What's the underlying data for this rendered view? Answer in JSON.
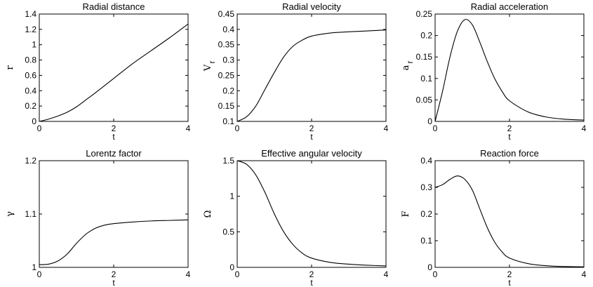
{
  "chart_data": [
    {
      "type": "line",
      "title": "Radial distance",
      "xlabel": "t",
      "ylabel": "r",
      "xlim": [
        0,
        4
      ],
      "ylim": [
        0,
        1.4
      ],
      "xticks": [
        0,
        2,
        4
      ],
      "yticks": [
        0,
        0.2,
        0.4,
        0.6,
        0.8,
        1,
        1.2,
        1.4
      ],
      "ytick_labels": [
        "0",
        "0.2",
        "0.4",
        "0.6",
        "0.8",
        "1",
        "1.2",
        "1.4"
      ],
      "x": [
        0,
        0.25,
        0.5,
        0.75,
        1,
        1.25,
        1.5,
        2,
        2.5,
        3,
        3.5,
        4
      ],
      "y": [
        0,
        0.03,
        0.07,
        0.12,
        0.19,
        0.28,
        0.37,
        0.56,
        0.75,
        0.92,
        1.09,
        1.27
      ]
    },
    {
      "type": "line",
      "title": "Radial velocity",
      "xlabel": "t",
      "ylabel": "V",
      "ylabel_sub": "r",
      "xlim": [
        0,
        4
      ],
      "ylim": [
        0.1,
        0.45
      ],
      "xticks": [
        0,
        2,
        4
      ],
      "yticks": [
        0.1,
        0.15,
        0.2,
        0.25,
        0.3,
        0.35,
        0.4,
        0.45
      ],
      "ytick_labels": [
        "0.1",
        "0.15",
        "0.2",
        "0.25",
        "0.3",
        "0.35",
        "0.4",
        "0.45"
      ],
      "x": [
        0,
        0.25,
        0.5,
        0.75,
        1,
        1.25,
        1.5,
        1.75,
        2,
        2.5,
        3,
        3.5,
        4
      ],
      "y": [
        0.1,
        0.115,
        0.15,
        0.205,
        0.26,
        0.31,
        0.345,
        0.365,
        0.378,
        0.388,
        0.392,
        0.395,
        0.398
      ]
    },
    {
      "type": "line",
      "title": "Radial acceleration",
      "xlabel": "t",
      "ylabel": "a",
      "ylabel_sub": "r",
      "xlim": [
        0,
        4
      ],
      "ylim": [
        0,
        0.25
      ],
      "xticks": [
        0,
        2,
        4
      ],
      "yticks": [
        0,
        0.05,
        0.1,
        0.15,
        0.2,
        0.25
      ],
      "ytick_labels": [
        "0",
        "0.05",
        "0.1",
        "0.15",
        "0.2",
        "0.25"
      ],
      "x": [
        0,
        0.2,
        0.4,
        0.6,
        0.8,
        1,
        1.2,
        1.4,
        1.6,
        1.8,
        2,
        2.5,
        3,
        3.5,
        4
      ],
      "y": [
        0,
        0.07,
        0.15,
        0.21,
        0.237,
        0.225,
        0.185,
        0.14,
        0.1,
        0.07,
        0.048,
        0.022,
        0.01,
        0.005,
        0.003
      ]
    },
    {
      "type": "line",
      "title": "Lorentz factor",
      "xlabel": "t",
      "ylabel": "γ",
      "xlim": [
        0,
        4
      ],
      "ylim": [
        1,
        1.2
      ],
      "xticks": [
        0,
        2,
        4
      ],
      "yticks": [
        1,
        1.1,
        1.2
      ],
      "ytick_labels": [
        "1",
        "1.1",
        "1.2"
      ],
      "x": [
        0,
        0.25,
        0.5,
        0.75,
        1,
        1.25,
        1.5,
        1.75,
        2,
        2.5,
        3,
        3.5,
        4
      ],
      "y": [
        1.005,
        1.006,
        1.012,
        1.025,
        1.045,
        1.062,
        1.073,
        1.079,
        1.082,
        1.085,
        1.087,
        1.088,
        1.089
      ]
    },
    {
      "type": "line",
      "title": "Effective angular velocity",
      "xlabel": "t",
      "ylabel": "Ω",
      "xlim": [
        0,
        4
      ],
      "ylim": [
        0,
        1.5
      ],
      "xticks": [
        0,
        2,
        4
      ],
      "yticks": [
        0,
        0.5,
        1,
        1.5
      ],
      "ytick_labels": [
        "0",
        "0.5",
        "1",
        "1.5"
      ],
      "x": [
        0,
        0.25,
        0.5,
        0.75,
        1,
        1.25,
        1.5,
        1.75,
        2,
        2.5,
        3,
        3.5,
        4
      ],
      "y": [
        1.5,
        1.45,
        1.3,
        1.05,
        0.75,
        0.5,
        0.32,
        0.2,
        0.13,
        0.07,
        0.045,
        0.03,
        0.02
      ]
    },
    {
      "type": "line",
      "title": "Reaction force",
      "xlabel": "t",
      "ylabel": "F",
      "xlim": [
        0,
        4
      ],
      "ylim": [
        0,
        0.4
      ],
      "xticks": [
        0,
        2,
        4
      ],
      "yticks": [
        0,
        0.1,
        0.2,
        0.3,
        0.4
      ],
      "ytick_labels": [
        "0",
        "0.1",
        "0.2",
        "0.3",
        "0.4"
      ],
      "x": [
        0,
        0.2,
        0.4,
        0.6,
        0.8,
        1,
        1.2,
        1.4,
        1.6,
        1.8,
        2,
        2.5,
        3,
        3.5,
        4
      ],
      "y": [
        0.3,
        0.31,
        0.33,
        0.343,
        0.33,
        0.29,
        0.22,
        0.15,
        0.095,
        0.058,
        0.035,
        0.014,
        0.006,
        0.003,
        0.002
      ]
    }
  ]
}
